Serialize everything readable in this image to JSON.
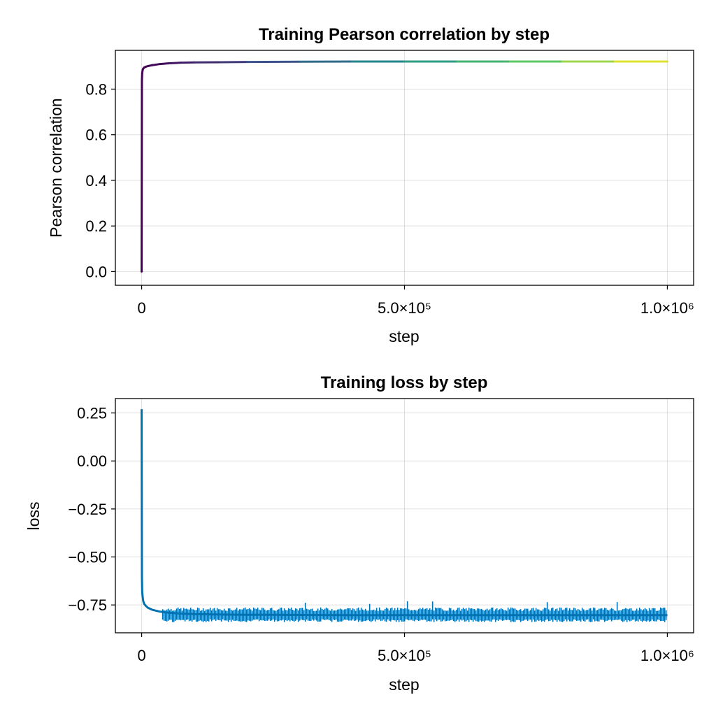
{
  "figure": {
    "background": "#ffffff"
  },
  "chart_data": [
    {
      "type": "line",
      "title": "Training Pearson correlation by step",
      "xlabel": "step",
      "ylabel": "Pearson correlation",
      "xlim": [
        -50000,
        1050000
      ],
      "ylim": [
        -0.06,
        0.97
      ],
      "xticks": [
        {
          "value": 0,
          "label": "0"
        },
        {
          "value": 500000,
          "label": "5.0×10⁵"
        },
        {
          "value": 1000000,
          "label": "1.0×10⁶"
        }
      ],
      "yticks": [
        {
          "value": 0.0,
          "label": "0.0"
        },
        {
          "value": 0.2,
          "label": "0.2"
        },
        {
          "value": 0.4,
          "label": "0.4"
        },
        {
          "value": 0.6,
          "label": "0.6"
        },
        {
          "value": 0.8,
          "label": "0.8"
        }
      ],
      "grid": true,
      "colormap": "viridis",
      "colormap_stops": [
        "#440154",
        "#3b528b",
        "#21918c",
        "#5ec962",
        "#fde725"
      ],
      "series": [
        {
          "x": [
            0,
            500,
            1000,
            2000,
            3000,
            5000,
            8000,
            12000,
            20000,
            35000,
            50000,
            75000,
            100000,
            150000,
            200000,
            300000,
            400000,
            500000,
            600000,
            700000,
            800000,
            900000,
            1000000
          ],
          "y": [
            0.0,
            0.84,
            0.87,
            0.885,
            0.89,
            0.895,
            0.898,
            0.901,
            0.905,
            0.91,
            0.913,
            0.916,
            0.917,
            0.918,
            0.919,
            0.92,
            0.921,
            0.921,
            0.921,
            0.921,
            0.921,
            0.921,
            0.921
          ]
        }
      ]
    },
    {
      "type": "line",
      "title": "Training loss by step",
      "xlabel": "step",
      "ylabel": "loss",
      "xlim": [
        -50000,
        1050000
      ],
      "ylim": [
        -0.895,
        0.325
      ],
      "xticks": [
        {
          "value": 0,
          "label": "0"
        },
        {
          "value": 500000,
          "label": "5.0×10⁵"
        },
        {
          "value": 1000000,
          "label": "1.0×10⁶"
        }
      ],
      "yticks": [
        {
          "value": 0.25,
          "label": "0.25"
        },
        {
          "value": 0.0,
          "label": "0.00"
        },
        {
          "value": -0.25,
          "label": "−0.25"
        },
        {
          "value": -0.5,
          "label": "−0.50"
        },
        {
          "value": -0.75,
          "label": "−0.75"
        }
      ],
      "grid": true,
      "line_color": "#0072b2",
      "series": [
        {
          "x": [
            0,
            500,
            1000,
            2000,
            3000,
            5000,
            8000,
            12000,
            20000,
            35000,
            50000,
            75000,
            100000,
            150000,
            200000,
            300000,
            400000,
            500000,
            600000,
            700000,
            800000,
            900000,
            1000000
          ],
          "y": [
            0.27,
            -0.6,
            -0.68,
            -0.71,
            -0.73,
            -0.745,
            -0.755,
            -0.765,
            -0.775,
            -0.785,
            -0.79,
            -0.795,
            -0.798,
            -0.8,
            -0.801,
            -0.802,
            -0.803,
            -0.803,
            -0.803,
            -0.803,
            -0.803,
            -0.803,
            -0.803
          ]
        }
      ]
    }
  ]
}
